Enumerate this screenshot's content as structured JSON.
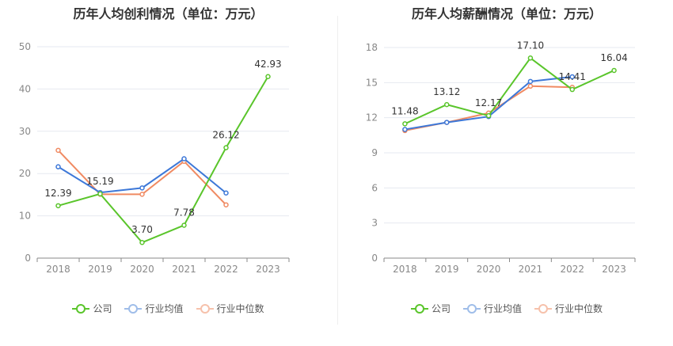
{
  "chart_data": [
    {
      "type": "line",
      "title": "历年人均创利情况（单位：万元）",
      "categories": [
        "2018",
        "2019",
        "2020",
        "2021",
        "2022",
        "2023"
      ],
      "ylim": [
        0,
        50
      ],
      "yticks": [
        0,
        10,
        20,
        30,
        40,
        50
      ],
      "grid": true,
      "legend_position": "bottom",
      "series": [
        {
          "name": "公司",
          "color": "#5ac52b",
          "values": [
            12.39,
            15.19,
            3.7,
            7.78,
            26.12,
            42.93
          ],
          "labels": [
            "12.39",
            "15.19",
            "3.70",
            "7.78",
            "26.12",
            "42.93"
          ]
        },
        {
          "name": "行业均值",
          "color": "#3d78d8",
          "values": [
            21.6,
            15.5,
            16.6,
            23.5,
            15.4,
            null
          ]
        },
        {
          "name": "行业中位数",
          "color": "#f08a62",
          "values": [
            25.5,
            15.1,
            15.1,
            22.9,
            12.6,
            null
          ]
        }
      ]
    },
    {
      "type": "line",
      "title": "历年人均薪酬情况（单位：万元）",
      "categories": [
        "2018",
        "2019",
        "2020",
        "2021",
        "2022",
        "2023"
      ],
      "ylim": [
        0,
        18
      ],
      "yticks": [
        0,
        3,
        6,
        9,
        12,
        15,
        18
      ],
      "grid": true,
      "legend_position": "bottom",
      "series": [
        {
          "name": "公司",
          "color": "#5ac52b",
          "values": [
            11.48,
            13.12,
            12.17,
            17.1,
            14.41,
            16.04
          ],
          "labels": [
            "11.48",
            "13.12",
            "12.17",
            "17.10",
            "14.41",
            "16.04"
          ]
        },
        {
          "name": "行业均值",
          "color": "#3d78d8",
          "values": [
            11.0,
            11.6,
            12.1,
            15.1,
            15.5,
            null
          ]
        },
        {
          "name": "行业中位数",
          "color": "#f08a62",
          "values": [
            10.9,
            11.6,
            12.4,
            14.7,
            14.6,
            null
          ]
        }
      ]
    }
  ]
}
